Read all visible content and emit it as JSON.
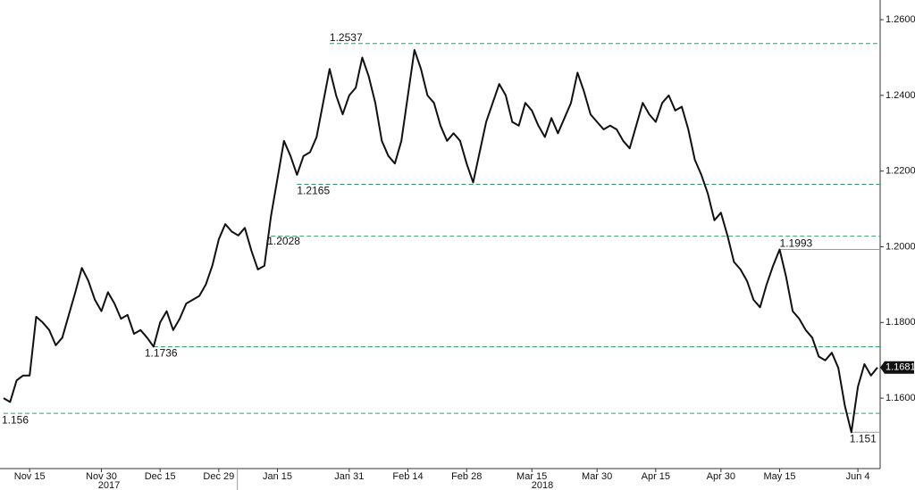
{
  "chart_data": {
    "type": "line",
    "color": "#111111",
    "categories": [
      null,
      null,
      null,
      null,
      "Nov 15",
      null,
      null,
      null,
      null,
      null,
      null,
      null,
      null,
      null,
      null,
      "Nov 30",
      null,
      null,
      null,
      null,
      null,
      null,
      null,
      null,
      "Dec 15",
      null,
      null,
      null,
      null,
      null,
      null,
      null,
      null,
      "Dec 29",
      null,
      null,
      null,
      null,
      null,
      null,
      null,
      null,
      "Jan 15",
      null,
      null,
      null,
      null,
      null,
      null,
      null,
      null,
      null,
      null,
      "Jan 31",
      null,
      null,
      null,
      null,
      null,
      null,
      null,
      null,
      "Feb 14",
      null,
      null,
      null,
      null,
      null,
      null,
      null,
      null,
      "Feb 28",
      null,
      null,
      null,
      null,
      null,
      null,
      null,
      null,
      null,
      "Mar 15",
      null,
      null,
      null,
      null,
      null,
      null,
      null,
      null,
      null,
      "Mar 30",
      null,
      null,
      null,
      null,
      null,
      null,
      null,
      null,
      "Apr 15",
      null,
      null,
      null,
      null,
      null,
      null,
      null,
      null,
      null,
      "Apr 30",
      null,
      null,
      null,
      null,
      null,
      null,
      null,
      null,
      "May 15",
      null,
      null,
      null,
      null,
      null,
      null,
      null,
      null,
      null,
      null,
      null,
      "Jun 4",
      null,
      null,
      null
    ],
    "years": [
      "2017",
      "2018"
    ],
    "values": [
      1.16,
      1.159,
      1.1647,
      1.166,
      1.166,
      1.1815,
      1.18,
      1.178,
      1.174,
      1.176,
      1.182,
      1.188,
      1.1944,
      1.191,
      1.186,
      1.183,
      1.188,
      1.185,
      1.181,
      1.182,
      1.177,
      1.178,
      1.176,
      1.1736,
      1.18,
      1.183,
      1.178,
      1.181,
      1.185,
      1.186,
      1.187,
      1.19,
      1.195,
      1.202,
      1.206,
      1.204,
      1.203,
      1.205,
      1.199,
      1.194,
      1.195,
      1.208,
      1.218,
      1.228,
      1.224,
      1.219,
      1.224,
      1.225,
      1.229,
      1.238,
      1.247,
      1.24,
      1.235,
      1.24,
      1.242,
      1.25,
      1.245,
      1.238,
      1.228,
      1.224,
      1.222,
      1.228,
      1.24,
      1.252,
      1.247,
      1.24,
      1.238,
      1.232,
      1.228,
      1.23,
      1.228,
      1.222,
      1.217,
      1.225,
      1.233,
      1.238,
      1.243,
      1.24,
      1.233,
      1.232,
      1.238,
      1.236,
      1.232,
      1.229,
      1.234,
      1.23,
      1.234,
      1.238,
      1.246,
      1.241,
      1.235,
      1.233,
      1.231,
      1.232,
      1.231,
      1.228,
      1.226,
      1.232,
      1.238,
      1.235,
      1.233,
      1.238,
      1.24,
      1.236,
      1.237,
      1.231,
      1.223,
      1.219,
      1.214,
      1.207,
      1.209,
      1.203,
      1.196,
      1.194,
      1.191,
      1.186,
      1.184,
      1.19,
      1.195,
      1.1993,
      1.192,
      1.183,
      1.181,
      1.178,
      1.176,
      1.171,
      1.17,
      1.172,
      1.168,
      1.158,
      1.151,
      1.163,
      1.169,
      1.166,
      1.1681
    ],
    "ylim": [
      1.1414,
      1.2652
    ],
    "yticks": [
      {
        "value": 1.16,
        "label": "1.1600"
      },
      {
        "value": 1.18,
        "label": "1.1800"
      },
      {
        "value": 1.2,
        "label": "1.2000"
      },
      {
        "value": 1.22,
        "label": "1.2200"
      },
      {
        "value": 1.24,
        "label": "1.2400"
      },
      {
        "value": 1.26,
        "label": "1.2600"
      }
    ],
    "levels": [
      {
        "value": 1.2537,
        "style": "dashed",
        "color": "#3a9a6a"
      },
      {
        "value": 1.2165,
        "style": "dashed",
        "color": "#3a9a6a"
      },
      {
        "value": 1.2028,
        "style": "dashed",
        "color": "#3a9a6a"
      },
      {
        "value": 1.1993,
        "style": "solid",
        "color": "#9a9a9a"
      },
      {
        "value": 1.1736,
        "style": "dashed",
        "color": "#3a9a6a"
      },
      {
        "value": 1.156,
        "style": "dashed",
        "color": "#3a9a6a"
      },
      {
        "value": 1.151,
        "style": "solid",
        "color": "#9a9a9a"
      }
    ],
    "last_price": 1.1681
  }
}
